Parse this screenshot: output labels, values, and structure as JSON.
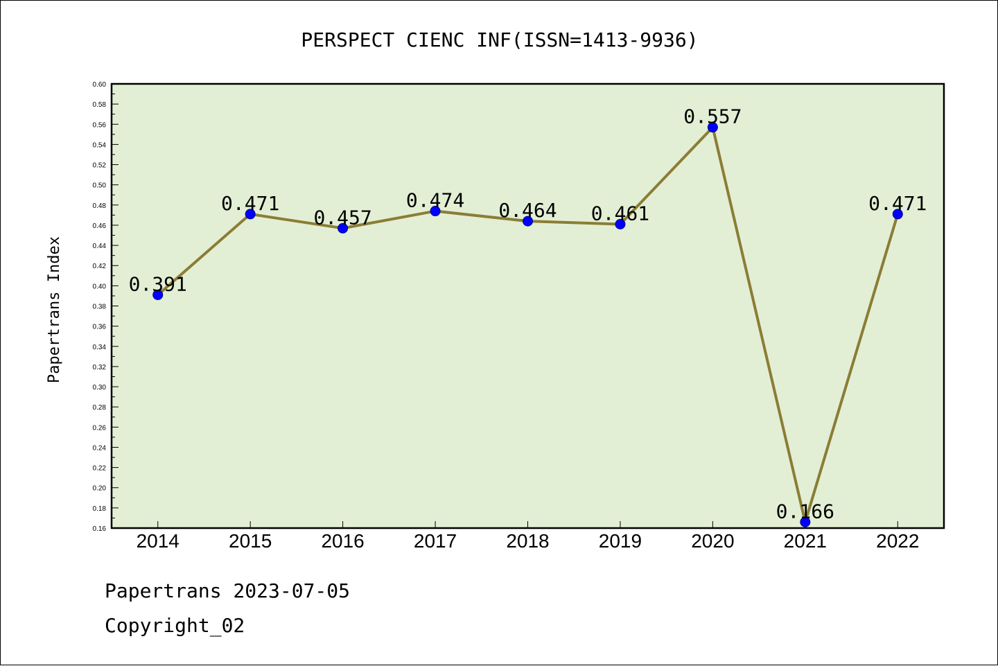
{
  "chart_data": {
    "type": "line",
    "title": "PERSPECT CIENC INF(ISSN=1413-9936)",
    "ylabel": "Papertrans Index",
    "xlabel": "",
    "categories": [
      "2014",
      "2015",
      "2016",
      "2017",
      "2018",
      "2019",
      "2020",
      "2021",
      "2022"
    ],
    "values": [
      0.391,
      0.471,
      0.457,
      0.474,
      0.464,
      0.461,
      0.557,
      0.166,
      0.471
    ],
    "data_labels": [
      "0.391",
      "0.471",
      "0.457",
      "0.474",
      "0.464",
      "0.461",
      "0.557",
      "0.166",
      "0.471"
    ],
    "ylim": [
      0.16,
      0.6
    ],
    "yticks": [
      "0.16",
      "0.18",
      "0.20",
      "0.22",
      "0.24",
      "0.26",
      "0.28",
      "0.30",
      "0.32",
      "0.34",
      "0.36",
      "0.38",
      "0.40",
      "0.42",
      "0.44",
      "0.46",
      "0.48",
      "0.50",
      "0.52",
      "0.54",
      "0.56",
      "0.58",
      "0.60"
    ],
    "grid": false,
    "colors": {
      "plot_background": "#e2efd5",
      "line": "#8b7d35",
      "marker": "#0000ff"
    }
  },
  "footer": {
    "line1": "Papertrans 2023-07-05",
    "line2": "Copyright_02"
  }
}
